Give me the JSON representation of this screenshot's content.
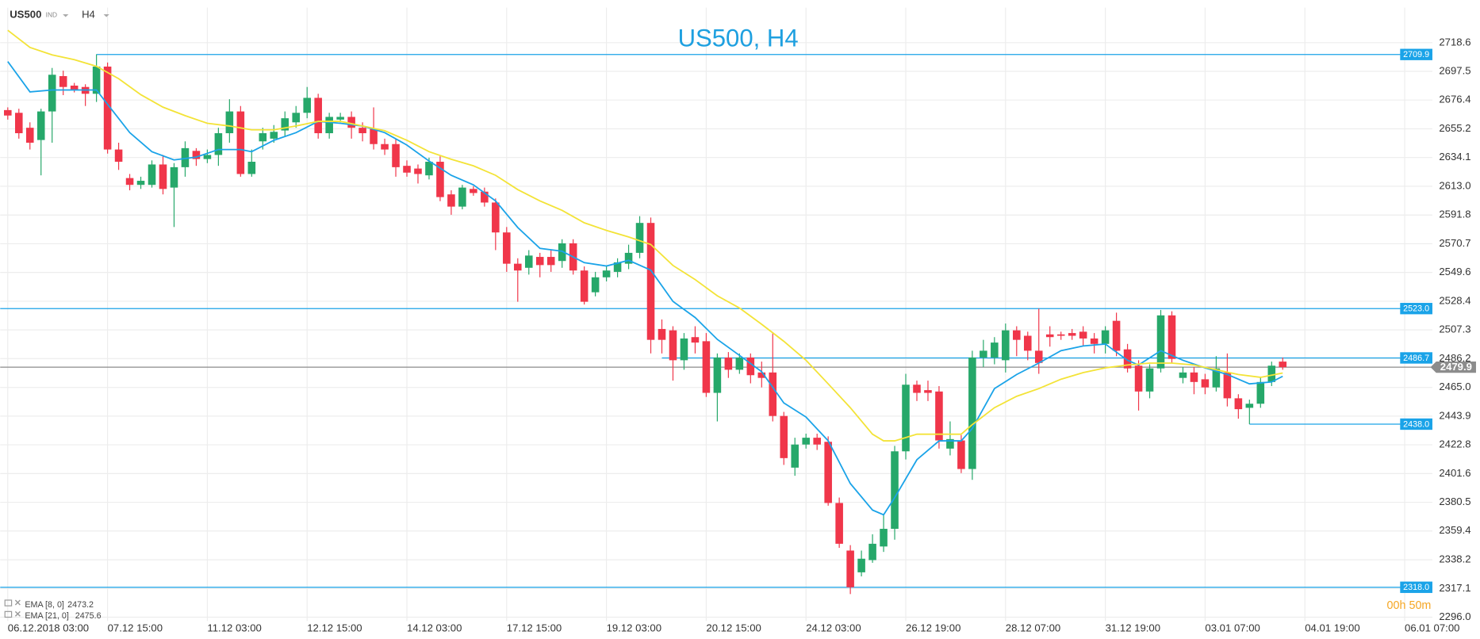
{
  "chart_data": {
    "type": "candlestick",
    "title": "US500, H4",
    "symbol": "US500",
    "symbol_tag": "IND",
    "timeframe": "H4",
    "countdown": "00h 50m",
    "up_color": "#26a86a",
    "down_color": "#f0364a",
    "level_color": "#1aa3e8",
    "price_color": "#8c8c8c",
    "grid": true,
    "ylim": [
      2293.2,
      2744.4
    ],
    "yticks": [
      2718.6,
      2697.5,
      2676.4,
      2655.2,
      2634.1,
      {
        "value": 2613,
        "label": "2613.0"
      },
      2591.8,
      2570.7,
      2549.6,
      2528.4,
      2507.3,
      2486.2,
      {
        "value": 2465,
        "label": "2465.0"
      },
      2443.9,
      2422.8,
      2401.6,
      2380.5,
      2359.4,
      2338.2,
      2317.1,
      {
        "value": 2296,
        "label": "2296.0"
      }
    ],
    "xlim": [
      -0.684,
      128.5
    ],
    "xticks": [
      {
        "value": 0,
        "label": "06.12.2018  03:00"
      },
      {
        "value": 9,
        "label": "07.12  15:00"
      },
      {
        "value": 18,
        "label": "11.12  03:00"
      },
      {
        "value": 27,
        "label": "12.12  15:00"
      },
      {
        "value": 36,
        "label": "14.12  03:00"
      },
      {
        "value": 45,
        "label": "17.12  15:00"
      },
      {
        "value": 54,
        "label": "19.12  03:00"
      },
      {
        "value": 63,
        "label": "20.12  15:00"
      },
      {
        "value": 72,
        "label": "24.12  03:00"
      },
      {
        "value": 81,
        "label": "26.12  19:00"
      },
      {
        "value": 90,
        "label": "28.12  07:00"
      },
      {
        "value": 99,
        "label": "31.12  19:00"
      },
      {
        "value": 108,
        "label": "03.01  07:00"
      },
      {
        "value": 117,
        "label": "04.01  19:00"
      },
      {
        "value": 126,
        "label": "06.01  07:00"
      }
    ],
    "candles": {
      "open": [
        2669,
        2667,
        2656,
        2647,
        2668,
        2694,
        2687,
        2686,
        2681,
        2701,
        2640,
        2619,
        2614,
        2614,
        2629,
        2612,
        2627,
        2639,
        2633,
        2636,
        2652,
        2668,
        2622,
        2646,
        2648,
        2654,
        2660,
        2667,
        2678,
        2652,
        2662,
        2664,
        2656,
        2655,
        2644,
        2644,
        2628,
        2626,
        2621,
        2631,
        2607,
        2598,
        2611,
        2609,
        2601,
        2579,
        2556,
        2553,
        2561,
        2561,
        2558,
        2571,
        2551,
        2535,
        2546,
        2550,
        2556,
        2564,
        2586,
        2508,
        2507,
        2485,
        2502,
        2499,
        2461,
        2487,
        2478,
        2487,
        2476,
        2476,
        2444,
        2406,
        2423,
        2428,
        2425,
        2380,
        2345,
        2329,
        2338,
        2348,
        2361,
        2418,
        2467,
        2463,
        2462,
        2420,
        2426,
        2405,
        2487,
        2487,
        2485,
        2507,
        2503,
        2492,
        2504,
        2504,
        2505,
        2506,
        2501,
        2497,
        2514,
        2493,
        2481,
        2462,
        2479,
        2518,
        2472,
        2476,
        2471,
        2465,
        2476,
        2457,
        2450,
        2453,
        2469,
        2484
      ],
      "high": [
        2671,
        2670,
        2660,
        2670,
        2700,
        2698,
        2689,
        2688,
        2710,
        2704,
        2645,
        2622,
        2620,
        2632,
        2636,
        2630,
        2646,
        2641,
        2640,
        2656,
        2677,
        2672,
        2640,
        2656,
        2658,
        2668,
        2672,
        2686,
        2681,
        2667,
        2667,
        2668,
        2660,
        2671,
        2648,
        2648,
        2632,
        2629,
        2634,
        2635,
        2610,
        2614,
        2613,
        2612,
        2604,
        2583,
        2560,
        2566,
        2564,
        2566,
        2574,
        2574,
        2554,
        2550,
        2554,
        2560,
        2570,
        2591,
        2590,
        2515,
        2510,
        2505,
        2510,
        2505,
        2490,
        2491,
        2490,
        2490,
        2484,
        2505,
        2447,
        2428,
        2431,
        2431,
        2429,
        2384,
        2349,
        2345,
        2357,
        2372,
        2422,
        2475,
        2470,
        2470,
        2466,
        2440,
        2430,
        2492,
        2500,
        2502,
        2512,
        2510,
        2506,
        2523,
        2510,
        2506,
        2508,
        2510,
        2505,
        2510,
        2520,
        2497,
        2485,
        2482,
        2522,
        2521,
        2480,
        2480,
        2475,
        2488,
        2490,
        2460,
        2456,
        2473,
        2484,
        2487
      ],
      "low": [
        2662,
        2648,
        2640,
        2621,
        2645,
        2680,
        2682,
        2672,
        2675,
        2637,
        2625,
        2610,
        2611,
        2612,
        2607,
        2583,
        2620,
        2628,
        2630,
        2628,
        2645,
        2620,
        2620,
        2640,
        2645,
        2650,
        2656,
        2663,
        2648,
        2648,
        2660,
        2648,
        2646,
        2640,
        2636,
        2620,
        2620,
        2615,
        2618,
        2602,
        2592,
        2596,
        2606,
        2598,
        2566,
        2550,
        2528,
        2548,
        2546,
        2550,
        2553,
        2548,
        2526,
        2532,
        2543,
        2546,
        2552,
        2560,
        2490,
        2490,
        2470,
        2478,
        2490,
        2458,
        2440,
        2472,
        2475,
        2468,
        2465,
        2440,
        2408,
        2400,
        2420,
        2419,
        2378,
        2347,
        2313,
        2326,
        2336,
        2344,
        2353,
        2412,
        2455,
        2455,
        2420,
        2415,
        2402,
        2397,
        2480,
        2482,
        2476,
        2488,
        2485,
        2475,
        2495,
        2500,
        2500,
        2496,
        2490,
        2490,
        2488,
        2476,
        2448,
        2457,
        2476,
        2483,
        2468,
        2460,
        2460,
        2462,
        2451,
        2442,
        2438,
        2450,
        2466,
        2478
      ],
      "close": [
        2665,
        2652,
        2645,
        2668,
        2695,
        2686,
        2684,
        2681,
        2701,
        2640,
        2631,
        2614,
        2617,
        2629,
        2611,
        2627,
        2641,
        2633,
        2636,
        2652,
        2668,
        2622,
        2631,
        2652,
        2653,
        2663,
        2667,
        2678,
        2652,
        2664,
        2664,
        2656,
        2652,
        2644,
        2640,
        2627,
        2623,
        2622,
        2631,
        2605,
        2598,
        2612,
        2608,
        2601,
        2579,
        2556,
        2551,
        2562,
        2555,
        2555,
        2571,
        2551,
        2528,
        2546,
        2551,
        2557,
        2564,
        2586,
        2500,
        2500,
        2485,
        2501,
        2498,
        2461,
        2487,
        2478,
        2487,
        2474,
        2472,
        2444,
        2413,
        2423,
        2428,
        2423,
        2380,
        2350,
        2318,
        2339,
        2350,
        2361,
        2418,
        2467,
        2461,
        2461,
        2426,
        2427,
        2405,
        2487,
        2492,
        2498,
        2507,
        2500,
        2492,
        2483,
        2502,
        2503,
        2503,
        2501,
        2497,
        2507,
        2492,
        2479,
        2462,
        2479,
        2518,
        2486,
        2476,
        2469,
        2465,
        2479,
        2457,
        2449,
        2453,
        2469,
        2481,
        2479.9
      ]
    },
    "series": [
      {
        "name": "EMA [8, 0]",
        "color": "#1aa3e8",
        "x": [
          0,
          2,
          4,
          6,
          8,
          9,
          11,
          13,
          15,
          17,
          19,
          21,
          22,
          24,
          26,
          28,
          30,
          32,
          34,
          36,
          38,
          40,
          42,
          44,
          46,
          48,
          50,
          52,
          54,
          56,
          58,
          60,
          62,
          64,
          66,
          68,
          70,
          72,
          74,
          76,
          78,
          79,
          80,
          82,
          84,
          86,
          87,
          89,
          91,
          93,
          95,
          97,
          99,
          101,
          102,
          104,
          106,
          108,
          110,
          112,
          114,
          115
        ],
        "values": [
          2704.7,
          2682.4,
          2683.8,
          2683.8,
          2683.8,
          2673.3,
          2652.4,
          2638.4,
          2632.3,
          2634.4,
          2640.0,
          2640.0,
          2638.4,
          2646.8,
          2652.4,
          2660.7,
          2659.3,
          2657.3,
          2652.4,
          2643.3,
          2631.5,
          2621.0,
          2614.0,
          2602.2,
          2582.6,
          2567.3,
          2565.2,
          2556.8,
          2554.3,
          2558.5,
          2551.3,
          2528.3,
          2516.4,
          2500.3,
          2488.5,
          2476.6,
          2453.6,
          2443.2,
          2425.7,
          2394.3,
          2374.8,
          2371.3,
          2383.9,
          2411.8,
          2425.7,
          2425.7,
          2434.8,
          2464.1,
          2474.5,
          2482.9,
          2492.0,
          2495.5,
          2496.9,
          2485.0,
          2481.5,
          2492.0,
          2485.0,
          2479.4,
          2474.5,
          2467.6,
          2469.0,
          2473.2
        ]
      },
      {
        "name": "EMA [21, 0]",
        "color": "#f3e337",
        "x": [
          0,
          2,
          4,
          6,
          8,
          10,
          12,
          14,
          16,
          18,
          20,
          22,
          24,
          26,
          28,
          30,
          32,
          34,
          36,
          38,
          40,
          42,
          44,
          46,
          48,
          50,
          52,
          54,
          56,
          58,
          60,
          62,
          64,
          66,
          68,
          70,
          72,
          74,
          76,
          78,
          79,
          80,
          82,
          84,
          86,
          87,
          89,
          91,
          93,
          95,
          97,
          99,
          101,
          103,
          105,
          107,
          109,
          111,
          113,
          115
        ],
        "values": [
          2727.7,
          2715.1,
          2709.6,
          2706.1,
          2701.2,
          2692.1,
          2680.3,
          2671.2,
          2664.9,
          2659.3,
          2657.3,
          2654.5,
          2654.5,
          2657.3,
          2660.7,
          2660.7,
          2657.3,
          2653.8,
          2646.8,
          2638.4,
          2632.8,
          2628.0,
          2621.0,
          2610.5,
          2602.2,
          2595.2,
          2586.1,
          2580.5,
          2575.7,
          2570.1,
          2554.7,
          2544.3,
          2532.4,
          2523.4,
          2511.5,
          2498.9,
          2485.0,
          2467.6,
          2450.1,
          2430.6,
          2425.7,
          2425.7,
          2430.6,
          2430.6,
          2430.6,
          2437.6,
          2450.1,
          2458.5,
          2464.1,
          2471.0,
          2475.9,
          2479.4,
          2481.5,
          2482.9,
          2482.9,
          2481.5,
          2478.0,
          2474.5,
          2472.4,
          2475.6
        ]
      }
    ],
    "levels": [
      {
        "value": 2709.9,
        "start": 8
      },
      {
        "value": 2523,
        "label": "2523.0"
      },
      {
        "value": 2486.7,
        "start": 59
      },
      {
        "value": 2438,
        "label": "2438.0",
        "start": 112
      },
      {
        "value": 2318,
        "label": "2318.0"
      }
    ]
  }
}
